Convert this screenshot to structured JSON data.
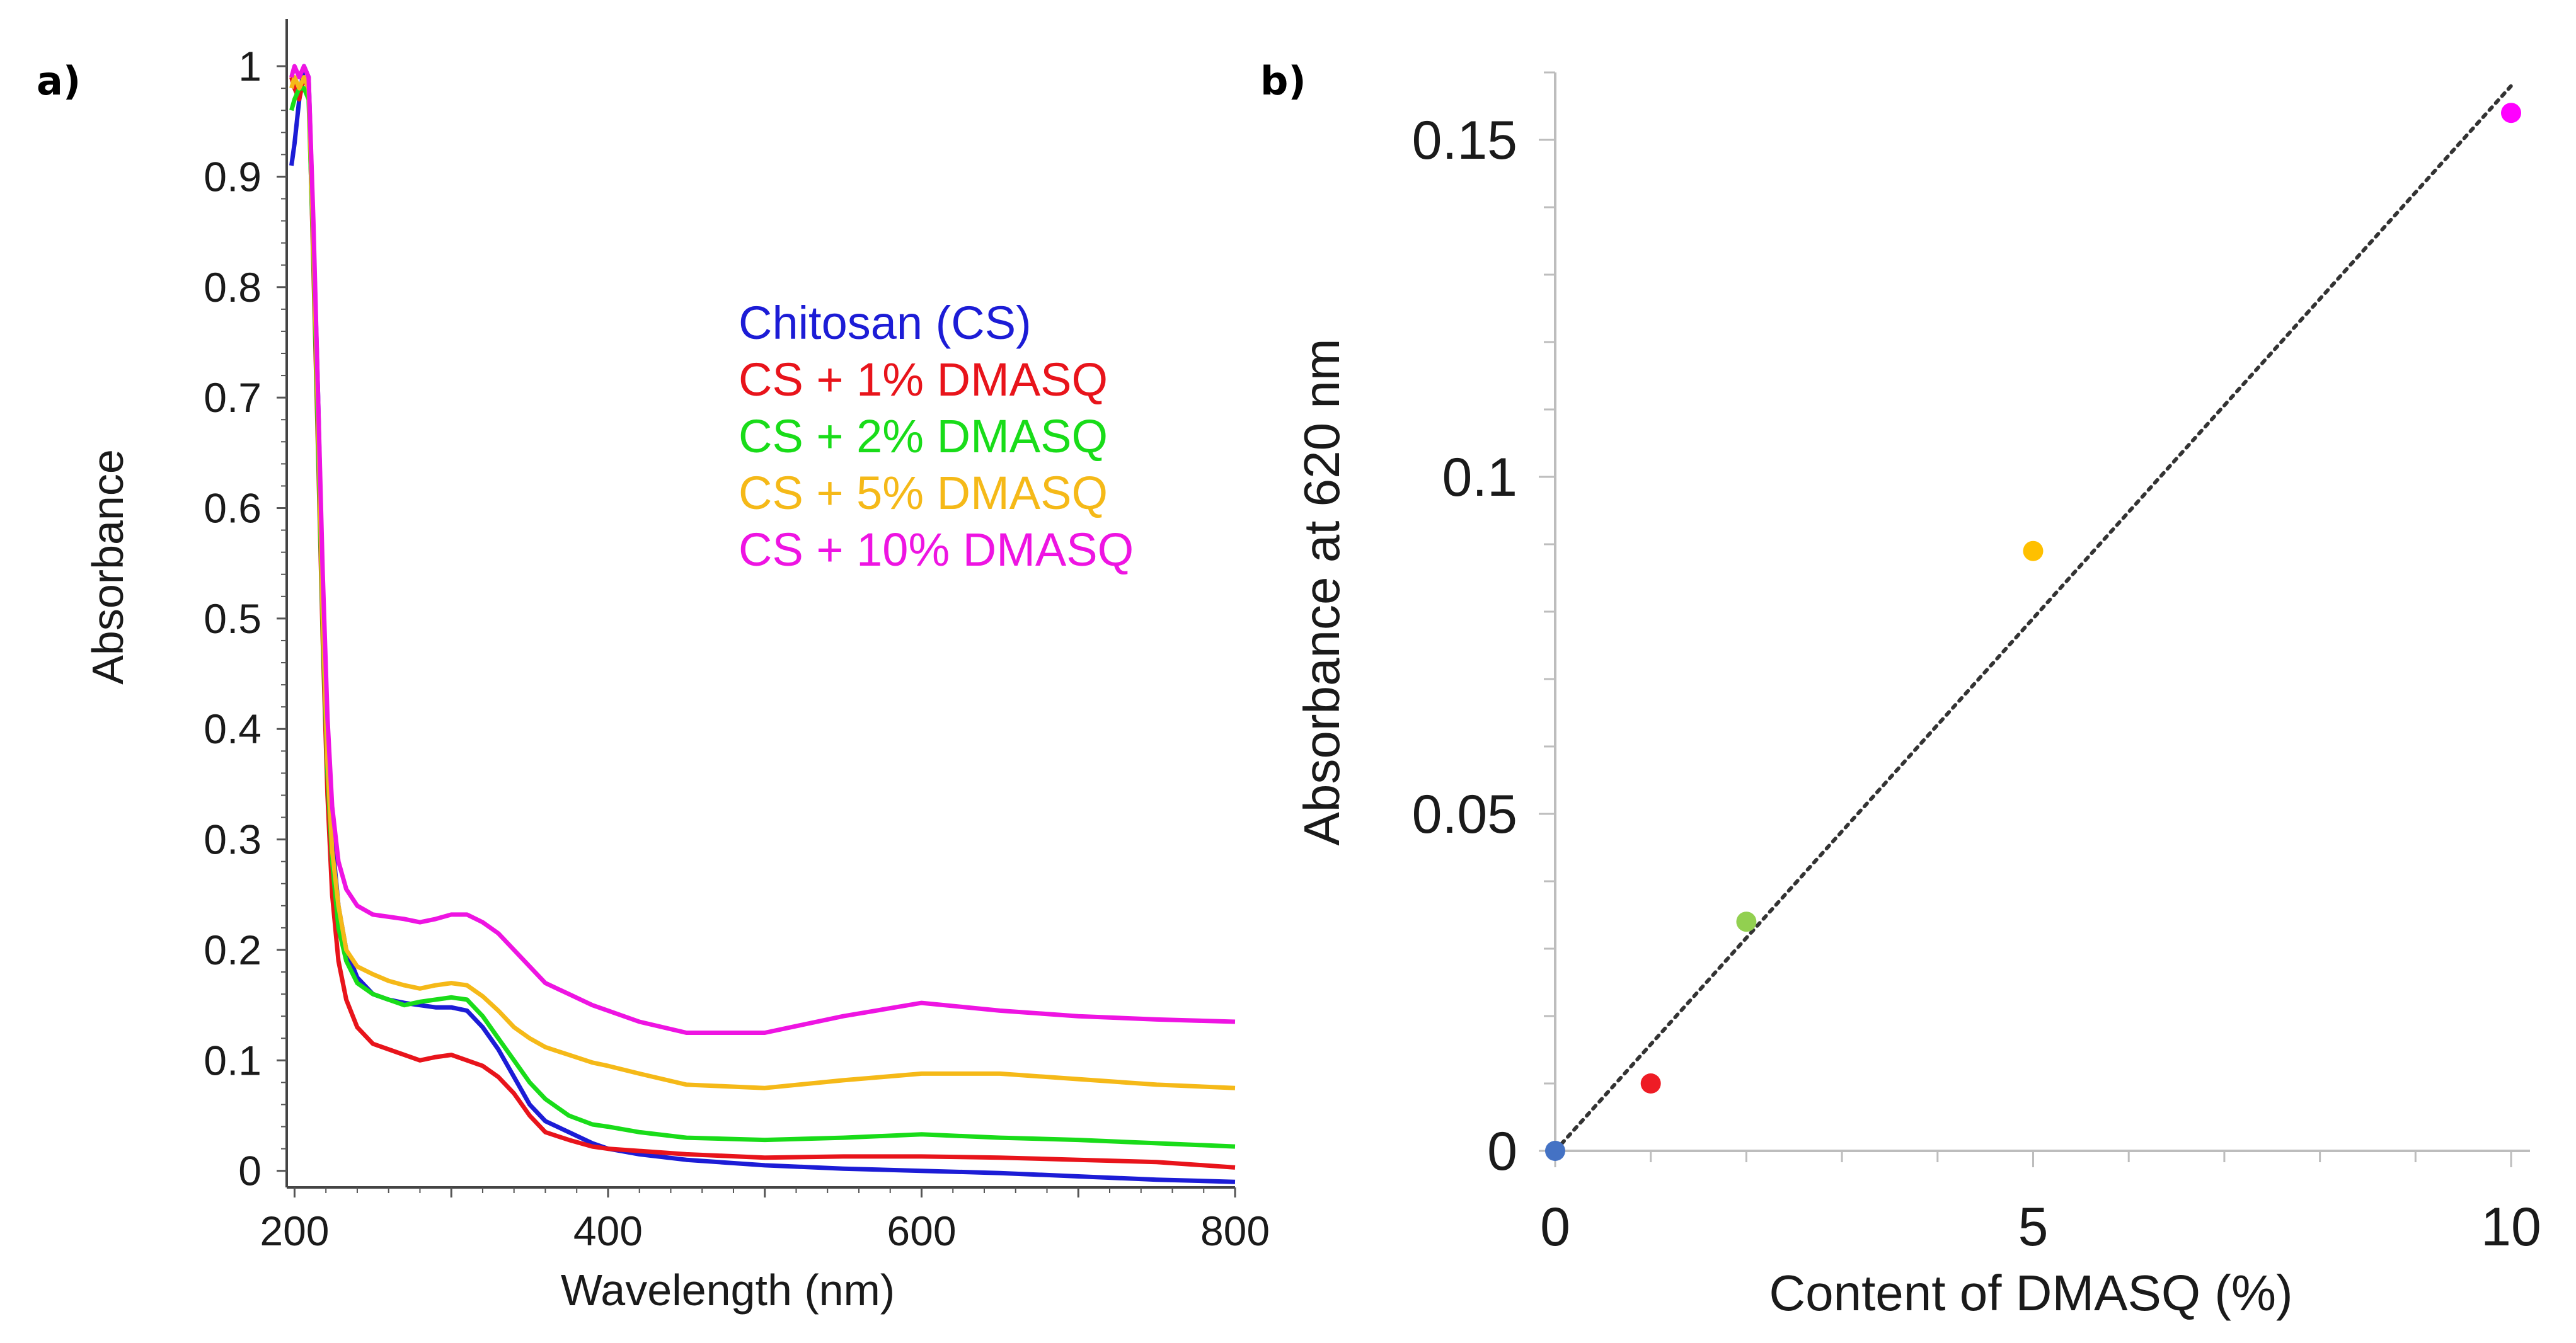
{
  "chart_data": [
    {
      "panel": "a)",
      "type": "line",
      "title": "",
      "xlabel": "Wavelength (nm)",
      "ylabel": "Absorbance",
      "xlim": [
        195,
        800
      ],
      "ylim": [
        -0.015,
        1.02
      ],
      "xticks": [
        200,
        400,
        600,
        800
      ],
      "yticks": [
        0,
        0.1,
        0.2,
        0.3,
        0.4,
        0.5,
        0.6,
        0.7,
        0.8,
        0.9,
        1
      ],
      "legend_position": "center-right",
      "series": [
        {
          "name": "Chitosan (CS)",
          "color": "#1c1cd6",
          "x": [
            198,
            200,
            203,
            206,
            209,
            212,
            215,
            218,
            221,
            224,
            228,
            233,
            240,
            250,
            260,
            270,
            280,
            290,
            300,
            310,
            320,
            330,
            340,
            350,
            360,
            375,
            390,
            400,
            420,
            450,
            500,
            550,
            600,
            650,
            700,
            750,
            800
          ],
          "y": [
            0.91,
            0.93,
            0.97,
            1.0,
            0.99,
            0.85,
            0.7,
            0.52,
            0.38,
            0.3,
            0.24,
            0.2,
            0.175,
            0.16,
            0.155,
            0.152,
            0.15,
            0.148,
            0.148,
            0.145,
            0.13,
            0.11,
            0.085,
            0.06,
            0.045,
            0.035,
            0.025,
            0.02,
            0.015,
            0.01,
            0.005,
            0.002,
            0.0,
            -0.002,
            -0.005,
            -0.008,
            -0.01
          ]
        },
        {
          "name": "CS + 1% DMASQ",
          "color": "#e8141b",
          "x": [
            198,
            200,
            203,
            206,
            209,
            212,
            215,
            218,
            221,
            224,
            228,
            233,
            240,
            250,
            260,
            270,
            280,
            290,
            300,
            310,
            320,
            330,
            340,
            350,
            360,
            375,
            390,
            400,
            420,
            450,
            500,
            550,
            600,
            650,
            700,
            750,
            800
          ],
          "y": [
            0.99,
            0.98,
            0.97,
            0.99,
            0.98,
            0.82,
            0.65,
            0.48,
            0.34,
            0.25,
            0.19,
            0.155,
            0.13,
            0.115,
            0.11,
            0.105,
            0.1,
            0.103,
            0.105,
            0.1,
            0.095,
            0.085,
            0.07,
            0.05,
            0.035,
            0.028,
            0.022,
            0.02,
            0.018,
            0.015,
            0.012,
            0.013,
            0.013,
            0.012,
            0.01,
            0.008,
            0.003
          ]
        },
        {
          "name": "CS + 2% DMASQ",
          "color": "#19dc19",
          "x": [
            198,
            200,
            203,
            206,
            209,
            212,
            215,
            218,
            221,
            224,
            228,
            233,
            240,
            250,
            260,
            270,
            280,
            290,
            300,
            310,
            320,
            330,
            340,
            350,
            360,
            375,
            390,
            400,
            420,
            450,
            500,
            550,
            600,
            650,
            700,
            750,
            800
          ],
          "y": [
            0.96,
            0.97,
            0.98,
            0.98,
            0.97,
            0.83,
            0.66,
            0.49,
            0.36,
            0.28,
            0.22,
            0.19,
            0.17,
            0.16,
            0.155,
            0.15,
            0.153,
            0.155,
            0.157,
            0.155,
            0.14,
            0.12,
            0.1,
            0.08,
            0.065,
            0.05,
            0.042,
            0.04,
            0.035,
            0.03,
            0.028,
            0.03,
            0.033,
            0.03,
            0.028,
            0.025,
            0.022
          ]
        },
        {
          "name": "CS + 5% DMASQ",
          "color": "#f5b918",
          "x": [
            198,
            200,
            203,
            206,
            209,
            212,
            215,
            218,
            221,
            224,
            228,
            233,
            240,
            250,
            260,
            270,
            280,
            290,
            300,
            310,
            320,
            330,
            340,
            350,
            360,
            375,
            390,
            400,
            420,
            450,
            500,
            550,
            600,
            650,
            700,
            750,
            800
          ],
          "y": [
            0.98,
            0.99,
            0.98,
            0.99,
            0.98,
            0.84,
            0.68,
            0.5,
            0.37,
            0.29,
            0.24,
            0.2,
            0.185,
            0.178,
            0.172,
            0.168,
            0.165,
            0.168,
            0.17,
            0.168,
            0.158,
            0.145,
            0.13,
            0.12,
            0.112,
            0.105,
            0.098,
            0.095,
            0.088,
            0.078,
            0.075,
            0.082,
            0.088,
            0.088,
            0.083,
            0.078,
            0.075
          ]
        },
        {
          "name": "CS + 10% DMASQ",
          "color": "#ee14e2",
          "x": [
            198,
            200,
            203,
            206,
            209,
            212,
            215,
            218,
            221,
            224,
            228,
            233,
            240,
            250,
            260,
            270,
            280,
            290,
            300,
            310,
            320,
            330,
            340,
            350,
            360,
            375,
            390,
            400,
            420,
            450,
            500,
            550,
            600,
            650,
            700,
            750,
            800
          ],
          "y": [
            0.99,
            1.0,
            0.99,
            1.0,
            0.99,
            0.86,
            0.7,
            0.54,
            0.41,
            0.33,
            0.28,
            0.255,
            0.24,
            0.232,
            0.23,
            0.228,
            0.225,
            0.228,
            0.232,
            0.232,
            0.225,
            0.215,
            0.2,
            0.185,
            0.17,
            0.16,
            0.15,
            0.145,
            0.135,
            0.125,
            0.125,
            0.14,
            0.152,
            0.145,
            0.14,
            0.137,
            0.135
          ]
        }
      ]
    },
    {
      "panel": "b)",
      "type": "scatter",
      "title": "",
      "xlabel": "Content of DMASQ (%)",
      "ylabel": "Absorbance at 620 nm",
      "xlim": [
        0,
        10
      ],
      "ylim": [
        0,
        0.16
      ],
      "xticks": [
        0,
        5,
        10
      ],
      "yticks": [
        0,
        0.05,
        0.1,
        0.15
      ],
      "points": [
        {
          "x": 0,
          "y": 0.0,
          "color": "#4472c4"
        },
        {
          "x": 1,
          "y": 0.01,
          "color": "#ee1c25"
        },
        {
          "x": 2,
          "y": 0.034,
          "color": "#92d050"
        },
        {
          "x": 5,
          "y": 0.089,
          "color": "#ffc000"
        },
        {
          "x": 10,
          "y": 0.154,
          "color": "#ff00ff"
        }
      ],
      "trendline": {
        "style": "dotted",
        "color": "#333333",
        "x": [
          0,
          10
        ],
        "y": [
          0.0,
          0.158
        ]
      }
    }
  ]
}
